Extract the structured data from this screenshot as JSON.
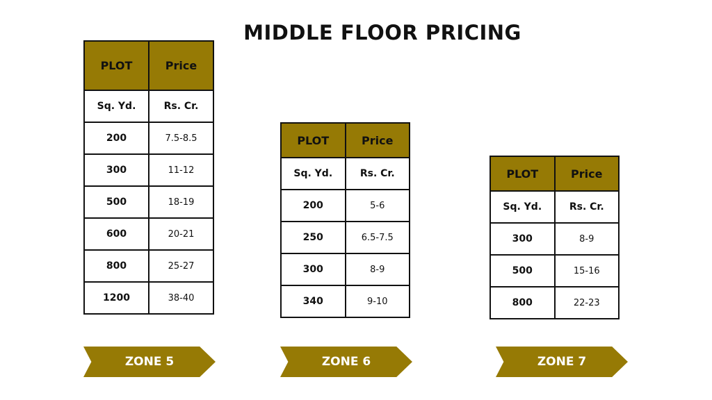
{
  "title": "MIDDLE FLOOR PRICING",
  "colors": {
    "header_fill": "#967a05",
    "border": "#111111",
    "label_text": "#ffffff"
  },
  "header": {
    "col1": "PLOT",
    "col2": "Price"
  },
  "units": {
    "col1": "Sq. Yd.",
    "col2": "Rs. Cr."
  },
  "zones": [
    {
      "label": "ZONE 5",
      "rows": [
        {
          "plot": "200",
          "price": "7.5-8.5"
        },
        {
          "plot": "300",
          "price": "11-12"
        },
        {
          "plot": "500",
          "price": "18-19"
        },
        {
          "plot": "600",
          "price": "20-21"
        },
        {
          "plot": "800",
          "price": "25-27"
        },
        {
          "plot": "1200",
          "price": "38-40"
        }
      ]
    },
    {
      "label": "ZONE 6",
      "rows": [
        {
          "plot": "200",
          "price": "5-6"
        },
        {
          "plot": "250",
          "price": "6.5-7.5"
        },
        {
          "plot": "300",
          "price": "8-9"
        },
        {
          "plot": "340",
          "price": "9-10"
        }
      ]
    },
    {
      "label": "ZONE 7",
      "rows": [
        {
          "plot": "300",
          "price": "8-9"
        },
        {
          "plot": "500",
          "price": "15-16"
        },
        {
          "plot": "800",
          "price": "22-23"
        }
      ]
    }
  ]
}
